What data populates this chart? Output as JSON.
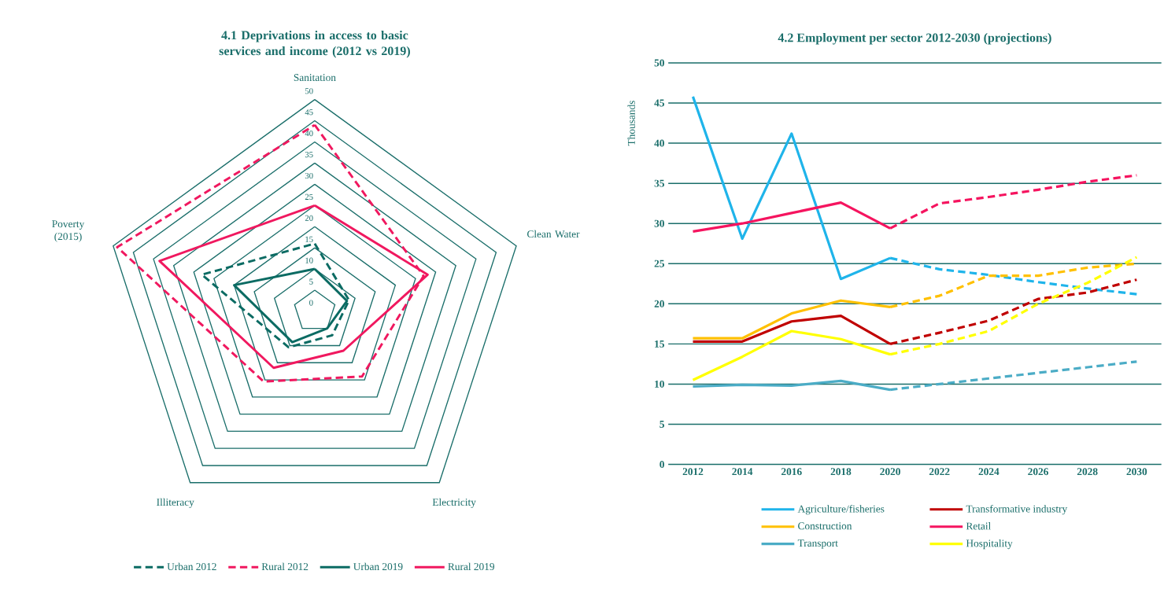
{
  "chart_data": [
    {
      "type": "radar",
      "title": "4.1 Deprivations in access to basic services and income (2012 vs 2019)",
      "categories": [
        "Sanitation",
        "Clean Water",
        "Electricity",
        "Illiteracy",
        "Poverty (2015)"
      ],
      "ylim": [
        0,
        50
      ],
      "yticks": [
        0,
        5,
        10,
        15,
        20,
        25,
        30,
        35,
        40,
        45,
        50
      ],
      "grid": true,
      "legend": "bottom",
      "series": [
        {
          "name": "Urban 2012",
          "color": "#0b6b63",
          "line_style": "dashed",
          "values": [
            16,
            8.5,
            7,
            10.5,
            28
          ]
        },
        {
          "name": "Rural 2012",
          "color": "#f0185f",
          "line_style": "dashed",
          "values": [
            44,
            27,
            19,
            20.5,
            49
          ]
        },
        {
          "name": "Urban 2019",
          "color": "#0b6b63",
          "line_style": "solid",
          "values": [
            10,
            8,
            5,
            9,
            20
          ]
        },
        {
          "name": "Rural 2019",
          "color": "#f0185f",
          "line_style": "solid",
          "values": [
            25,
            28,
            11.5,
            16.5,
            38.5
          ]
        }
      ]
    },
    {
      "type": "line",
      "title": "4.2 Employment per sector 2012-2030 (projections)",
      "ylabel": "Thousands",
      "categories": [
        "2012",
        "2014",
        "2016",
        "2018",
        "2020",
        "2022",
        "2024",
        "2026",
        "2028",
        "2030"
      ],
      "ylim": [
        0,
        50
      ],
      "yticks": [
        0,
        5,
        10,
        15,
        20,
        25,
        30,
        35,
        40,
        45,
        50
      ],
      "grid": "y",
      "legend": "bottom",
      "series": [
        {
          "name": "Agriculture/fisheries",
          "color": "#1fb4ea",
          "line_style": "solid",
          "values": [
            45.8,
            28.1,
            41.2,
            23.1,
            25.7,
            null,
            null,
            null,
            null,
            null
          ]
        },
        {
          "name": "Transformative industry",
          "color": "#c00000",
          "line_style": "solid",
          "values": [
            15.3,
            15.3,
            17.8,
            18.5,
            15.0,
            null,
            null,
            null,
            null,
            null
          ]
        },
        {
          "name": "Construction",
          "color": "#ffc000",
          "line_style": "solid",
          "values": [
            15.7,
            15.7,
            18.8,
            20.4,
            19.6,
            null,
            null,
            null,
            null,
            null
          ]
        },
        {
          "name": "Retail",
          "color": "#f5145f",
          "line_style": "solid",
          "values": [
            29.0,
            30.0,
            31.3,
            32.6,
            29.4,
            null,
            null,
            null,
            null,
            null
          ]
        },
        {
          "name": "Transport",
          "color": "#4bacc6",
          "line_style": "solid",
          "values": [
            9.7,
            9.9,
            9.8,
            10.4,
            9.3,
            null,
            null,
            null,
            null,
            null
          ]
        },
        {
          "name": "Hospitality",
          "color": "#ffff00",
          "line_style": "solid",
          "values": [
            10.5,
            13.4,
            16.6,
            15.6,
            13.7,
            null,
            null,
            null,
            null,
            null
          ]
        },
        {
          "color": "#1fb4ea",
          "line_style": "dashed",
          "values": [
            null,
            null,
            null,
            null,
            25.7,
            24.3,
            23.6,
            22.7,
            21.9,
            21.2
          ]
        },
        {
          "color": "#c00000",
          "line_style": "dashed",
          "values": [
            null,
            null,
            null,
            null,
            15.0,
            16.4,
            17.9,
            20.6,
            21.4,
            23.0
          ]
        },
        {
          "color": "#ffc000",
          "line_style": "dashed",
          "values": [
            null,
            null,
            null,
            null,
            19.6,
            21.0,
            23.5,
            23.5,
            24.5,
            25.0
          ]
        },
        {
          "color": "#f5145f",
          "line_style": "dashed",
          "values": [
            null,
            null,
            null,
            null,
            29.4,
            32.5,
            33.3,
            34.2,
            35.2,
            36.0
          ]
        },
        {
          "color": "#4bacc6",
          "line_style": "dashed",
          "values": [
            null,
            null,
            null,
            null,
            9.3,
            10.0,
            10.7,
            11.4,
            12.1,
            12.8
          ]
        },
        {
          "color": "#ffff00",
          "line_style": "dashed",
          "values": [
            null,
            null,
            null,
            null,
            13.7,
            15.0,
            16.6,
            20.0,
            22.6,
            25.8
          ]
        }
      ]
    }
  ]
}
